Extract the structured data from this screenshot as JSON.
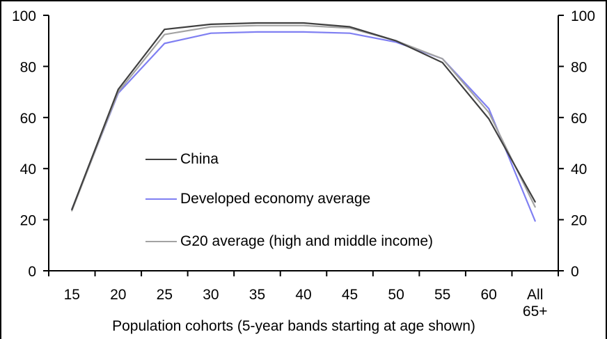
{
  "chart_data": {
    "type": "line",
    "categories": [
      "15",
      "20",
      "25",
      "30",
      "35",
      "40",
      "45",
      "50",
      "55",
      "60",
      "All 65+"
    ],
    "series": [
      {
        "name": "China",
        "color": "#404040",
        "values": [
          24,
          71,
          94.5,
          96.5,
          97,
          97,
          95.5,
          90,
          81.5,
          59.5,
          27
        ]
      },
      {
        "name": "Developed economy average",
        "color": "#7f7ff2",
        "values": [
          24,
          69.5,
          89,
          93,
          93.5,
          93.5,
          93,
          89.5,
          83,
          63.5,
          19.5
        ]
      },
      {
        "name": "G20 average (high and middle income)",
        "color": "#a3a3a3",
        "values": [
          23.5,
          70,
          92.5,
          95.5,
          96,
          96,
          95,
          90,
          83,
          62,
          25
        ]
      }
    ],
    "title": "",
    "xlabel": "Population cohorts (5-year bands starting at age shown)",
    "ylabel": "",
    "ylim": [
      0,
      100
    ],
    "yticks": [
      0,
      20,
      40,
      60,
      80,
      100
    ],
    "y_axis_sides": [
      "left",
      "right"
    ],
    "grid": "off",
    "legend_position": "inside-left-middle"
  }
}
